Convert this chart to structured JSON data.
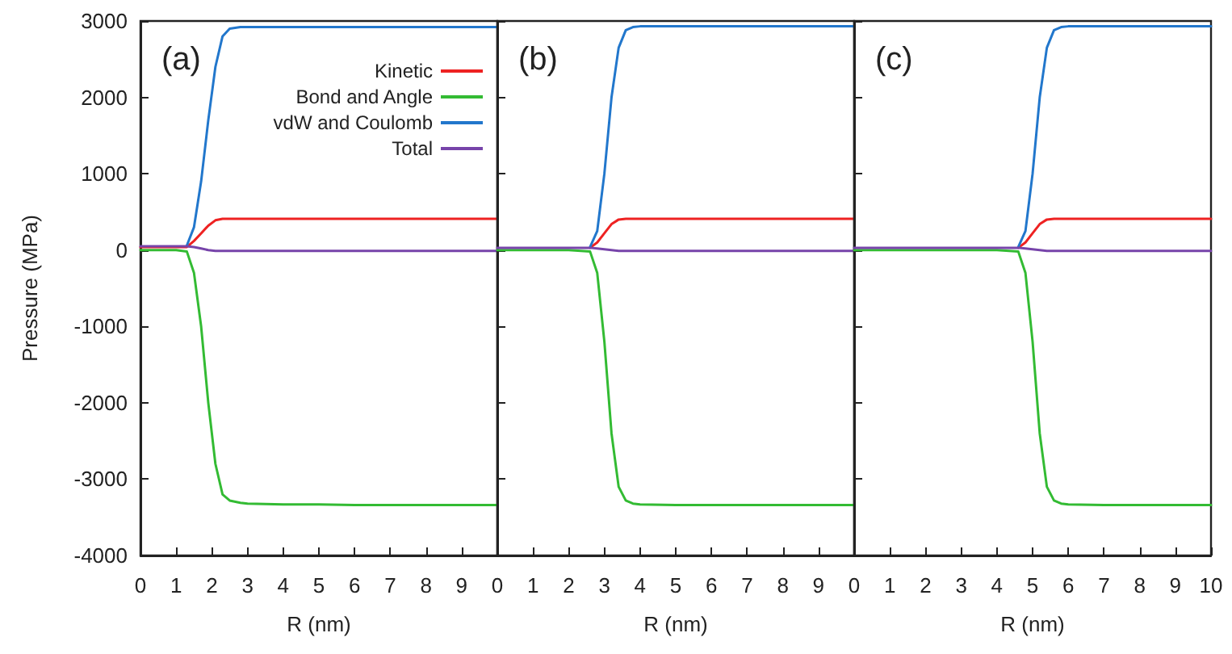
{
  "chart_data": [
    {
      "type": "line",
      "title": "(a)",
      "xlabel": "R (nm)",
      "ylabel": "Pressure (MPa)",
      "legend": "top right",
      "grid": false,
      "marker": "none",
      "line_style": "solid",
      "xlim": [
        0,
        10
      ],
      "xticks": [
        0,
        1,
        2,
        3,
        4,
        5,
        6,
        7,
        8,
        9
      ],
      "ylim": [
        -4000,
        3000
      ],
      "yticks": [
        -4000,
        -3000,
        -2000,
        -1000,
        0,
        1000,
        2000,
        3000
      ],
      "x": [
        0,
        0.5,
        1,
        1.3,
        1.5,
        1.7,
        1.9,
        2.1,
        2.3,
        2.5,
        2.8,
        3,
        4,
        5,
        6,
        7,
        8,
        9,
        10
      ],
      "series": [
        {
          "name": "Kinetic",
          "color": "#ee2222",
          "values": [
            40,
            40,
            40,
            40,
            120,
            220,
            320,
            390,
            410,
            410,
            410,
            410,
            410,
            410,
            410,
            410,
            410,
            410,
            410
          ]
        },
        {
          "name": "Bond and Angle",
          "color": "#33bb33",
          "values": [
            0,
            0,
            0,
            -20,
            -300,
            -1000,
            -2000,
            -2800,
            -3200,
            -3280,
            -3310,
            -3320,
            -3330,
            -3330,
            -3340,
            -3340,
            -3340,
            -3340,
            -3340
          ]
        },
        {
          "name": "vdW and Coulomb",
          "color": "#2277cc",
          "values": [
            null,
            null,
            null,
            60,
            300,
            900,
            1700,
            2400,
            2800,
            2900,
            2920,
            2920,
            2920,
            2920,
            2920,
            2920,
            2920,
            2920,
            2920
          ]
        },
        {
          "name": "Total",
          "color": "#7744aa",
          "values": [
            50,
            50,
            50,
            50,
            40,
            20,
            0,
            -10,
            -10,
            -10,
            -10,
            -10,
            -10,
            -10,
            -10,
            -10,
            -10,
            -10,
            -10
          ]
        }
      ]
    },
    {
      "type": "line",
      "title": "(b)",
      "xlabel": "R (nm)",
      "tick_labels": "x",
      "grid": false,
      "marker": "none",
      "line_style": "solid",
      "xlim": [
        0,
        10
      ],
      "xticks": [
        0,
        1,
        2,
        3,
        4,
        5,
        6,
        7,
        8,
        9
      ],
      "ylim": [
        -4000,
        3000
      ],
      "yticks": [
        -4000,
        -3000,
        -2000,
        -1000,
        0,
        1000,
        2000,
        3000
      ],
      "x": [
        0,
        1,
        2,
        2.6,
        2.8,
        3,
        3.2,
        3.4,
        3.6,
        3.8,
        4,
        5,
        6,
        7,
        8,
        9,
        10
      ],
      "series": [
        {
          "color": "#ee2222",
          "values": [
            null,
            null,
            null,
            30,
            100,
            220,
            340,
            400,
            410,
            410,
            410,
            410,
            410,
            410,
            410,
            410,
            410
          ]
        },
        {
          "color": "#33bb33",
          "values": [
            0,
            0,
            0,
            -20,
            -300,
            -1200,
            -2400,
            -3100,
            -3280,
            -3320,
            -3330,
            -3340,
            -3340,
            -3340,
            -3340,
            -3340,
            -3340
          ]
        },
        {
          "color": "#2277cc",
          "values": [
            null,
            null,
            null,
            40,
            250,
            1000,
            2000,
            2650,
            2880,
            2920,
            2930,
            2930,
            2930,
            2930,
            2930,
            2930,
            2930
          ]
        },
        {
          "color": "#7744aa",
          "values": [
            30,
            30,
            30,
            30,
            20,
            10,
            0,
            -10,
            -10,
            -10,
            -10,
            -10,
            -10,
            -10,
            -10,
            -10,
            -10
          ]
        }
      ]
    },
    {
      "type": "line",
      "title": "(c)",
      "xlabel": "R (nm)",
      "tick_labels": "x",
      "grid": false,
      "marker": "none",
      "line_style": "solid",
      "xlim": [
        0,
        10
      ],
      "xticks": [
        0,
        1,
        2,
        3,
        4,
        5,
        6,
        7,
        8,
        9,
        10
      ],
      "ylim": [
        -4000,
        3000
      ],
      "yticks": [
        -4000,
        -3000,
        -2000,
        -1000,
        0,
        1000,
        2000,
        3000
      ],
      "x": [
        0,
        1,
        2,
        3,
        4,
        4.6,
        4.8,
        5,
        5.2,
        5.4,
        5.6,
        5.8,
        6,
        7,
        8,
        9,
        10
      ],
      "series": [
        {
          "color": "#ee2222",
          "values": [
            null,
            null,
            null,
            null,
            null,
            30,
            100,
            220,
            340,
            400,
            410,
            410,
            410,
            410,
            410,
            410,
            410
          ]
        },
        {
          "color": "#33bb33",
          "values": [
            0,
            0,
            0,
            0,
            0,
            -20,
            -300,
            -1200,
            -2400,
            -3100,
            -3280,
            -3320,
            -3330,
            -3340,
            -3340,
            -3340,
            -3340
          ]
        },
        {
          "color": "#2277cc",
          "values": [
            null,
            null,
            null,
            null,
            null,
            40,
            250,
            1000,
            2000,
            2650,
            2880,
            2920,
            2930,
            2930,
            2930,
            2930,
            2930
          ]
        },
        {
          "color": "#7744aa",
          "values": [
            30,
            30,
            30,
            30,
            30,
            30,
            20,
            10,
            0,
            -10,
            -10,
            -10,
            -10,
            -10,
            -10,
            -10,
            -10
          ]
        }
      ]
    }
  ]
}
